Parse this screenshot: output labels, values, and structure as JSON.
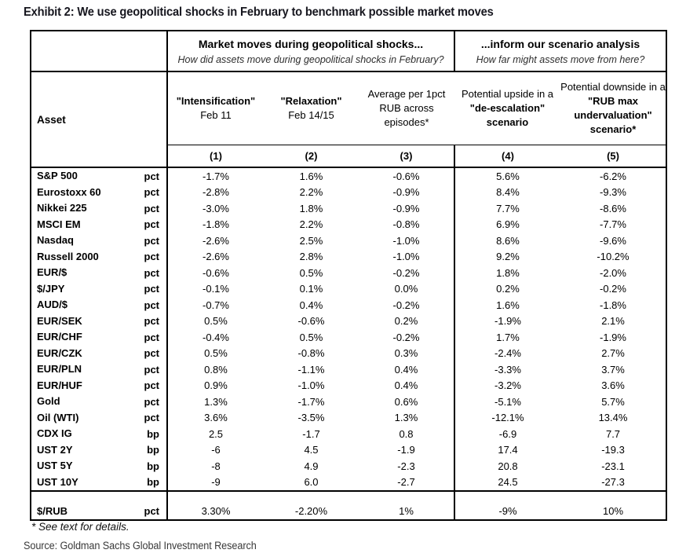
{
  "colors": {
    "background": "#ffffff",
    "border": "#000000",
    "title_text": "#17171f",
    "source_text": "#3a3a3a"
  },
  "chart_data": {
    "type": "table",
    "title": "Exhibit 2: We use geopolitical shocks in February to benchmark possible market moves",
    "groups": [
      {
        "title": "Market moves during geopolitical shocks...",
        "subtitle": "How did assets move during geopolitical shocks in February?"
      },
      {
        "title": "...inform our scenario analysis",
        "subtitle": "How far might assets move from here?"
      }
    ],
    "asset_header": "Asset",
    "col_headers": {
      "c1": {
        "main": "\"Intensification\"",
        "sub": "Feb 11"
      },
      "c2": {
        "main": "\"Relaxation\"",
        "sub": "Feb 14/15"
      },
      "c3": {
        "text": "Average per 1pct RUB across episodes*"
      },
      "c4": {
        "lead": "Potential upside in a",
        "emph": "\"de-escalation\" scenario"
      },
      "c5": {
        "lead": "Potential downside in a",
        "emph": "\"RUB max undervaluation\" scenario*"
      }
    },
    "col_numbers": [
      "(1)",
      "(2)",
      "(3)",
      "(4)",
      "(5)"
    ],
    "rows": [
      {
        "asset": "S&P 500",
        "unit": "pct",
        "c1": "-1.7%",
        "c2": "1.6%",
        "c3": "-0.6%",
        "c4": "5.6%",
        "c5": "-6.2%"
      },
      {
        "asset": "Eurostoxx 60",
        "unit": "pct",
        "c1": "-2.8%",
        "c2": "2.2%",
        "c3": "-0.9%",
        "c4": "8.4%",
        "c5": "-9.3%"
      },
      {
        "asset": "Nikkei 225",
        "unit": "pct",
        "c1": "-3.0%",
        "c2": "1.8%",
        "c3": "-0.9%",
        "c4": "7.7%",
        "c5": "-8.6%"
      },
      {
        "asset": "MSCI EM",
        "unit": "pct",
        "c1": "-1.8%",
        "c2": "2.2%",
        "c3": "-0.8%",
        "c4": "6.9%",
        "c5": "-7.7%"
      },
      {
        "asset": "Nasdaq",
        "unit": "pct",
        "c1": "-2.6%",
        "c2": "2.5%",
        "c3": "-1.0%",
        "c4": "8.6%",
        "c5": "-9.6%"
      },
      {
        "asset": "Russell 2000",
        "unit": "pct",
        "c1": "-2.6%",
        "c2": "2.8%",
        "c3": "-1.0%",
        "c4": "9.2%",
        "c5": "-10.2%"
      },
      {
        "asset": "EUR/$",
        "unit": "pct",
        "c1": "-0.6%",
        "c2": "0.5%",
        "c3": "-0.2%",
        "c4": "1.8%",
        "c5": "-2.0%"
      },
      {
        "asset": "$/JPY",
        "unit": "pct",
        "c1": "-0.1%",
        "c2": "0.1%",
        "c3": "0.0%",
        "c4": "0.2%",
        "c5": "-0.2%"
      },
      {
        "asset": "AUD/$",
        "unit": "pct",
        "c1": "-0.7%",
        "c2": "0.4%",
        "c3": "-0.2%",
        "c4": "1.6%",
        "c5": "-1.8%"
      },
      {
        "asset": "EUR/SEK",
        "unit": "pct",
        "c1": "0.5%",
        "c2": "-0.6%",
        "c3": "0.2%",
        "c4": "-1.9%",
        "c5": "2.1%"
      },
      {
        "asset": "EUR/CHF",
        "unit": "pct",
        "c1": "-0.4%",
        "c2": "0.5%",
        "c3": "-0.2%",
        "c4": "1.7%",
        "c5": "-1.9%"
      },
      {
        "asset": "EUR/CZK",
        "unit": "pct",
        "c1": "0.5%",
        "c2": "-0.8%",
        "c3": "0.3%",
        "c4": "-2.4%",
        "c5": "2.7%"
      },
      {
        "asset": "EUR/PLN",
        "unit": "pct",
        "c1": "0.8%",
        "c2": "-1.1%",
        "c3": "0.4%",
        "c4": "-3.3%",
        "c5": "3.7%"
      },
      {
        "asset": "EUR/HUF",
        "unit": "pct",
        "c1": "0.9%",
        "c2": "-1.0%",
        "c3": "0.4%",
        "c4": "-3.2%",
        "c5": "3.6%"
      },
      {
        "asset": "Gold",
        "unit": "pct",
        "c1": "1.3%",
        "c2": "-1.7%",
        "c3": "0.6%",
        "c4": "-5.1%",
        "c5": "5.7%"
      },
      {
        "asset": "Oil (WTI)",
        "unit": "pct",
        "c1": "3.6%",
        "c2": "-3.5%",
        "c3": "1.3%",
        "c4": "-12.1%",
        "c5": "13.4%"
      },
      {
        "asset": "CDX IG",
        "unit": "bp",
        "c1": "2.5",
        "c2": "-1.7",
        "c3": "0.8",
        "c4": "-6.9",
        "c5": "7.7"
      },
      {
        "asset": "UST 2Y",
        "unit": "bp",
        "c1": "-6",
        "c2": "4.5",
        "c3": "-1.9",
        "c4": "17.4",
        "c5": "-19.3"
      },
      {
        "asset": "UST 5Y",
        "unit": "bp",
        "c1": "-8",
        "c2": "4.9",
        "c3": "-2.3",
        "c4": "20.8",
        "c5": "-23.1"
      },
      {
        "asset": "UST 10Y",
        "unit": "bp",
        "c1": "-9",
        "c2": "6.0",
        "c3": "-2.7",
        "c4": "24.5",
        "c5": "-27.3"
      }
    ],
    "rub_row": {
      "asset": "$/RUB",
      "unit": "pct",
      "c1": "3.30%",
      "c2": "-2.20%",
      "c3": "1%",
      "c4": "-9%",
      "c5": "10%"
    },
    "footnote": "* See text for details.",
    "source": "Source: Goldman Sachs Global Investment Research"
  }
}
